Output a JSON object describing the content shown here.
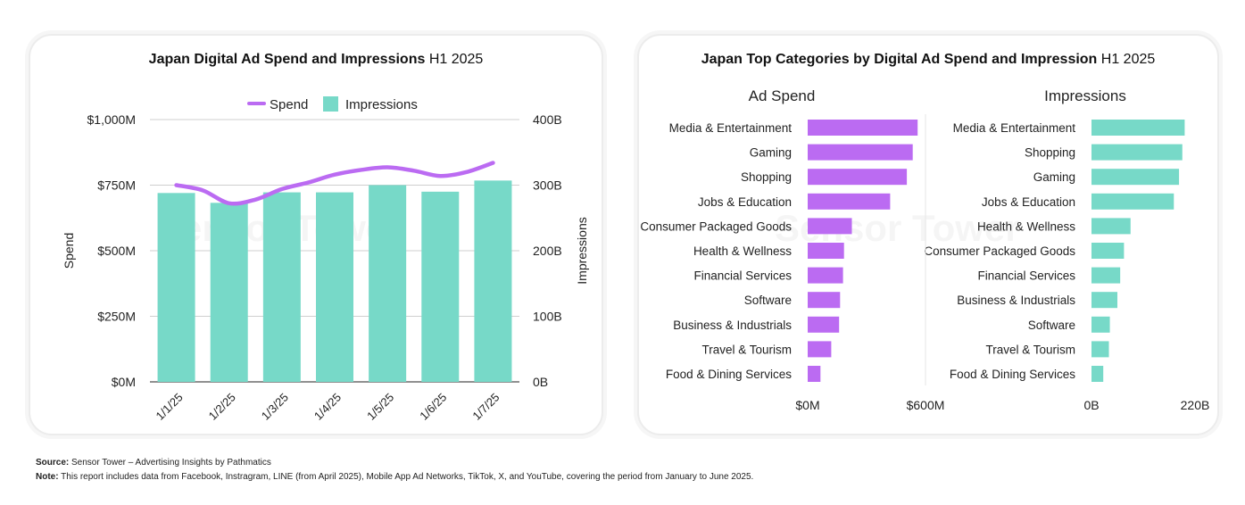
{
  "left_panel": {
    "title_bold": "Japan Digital Ad Spend and Impressions",
    "title_rest": "H1 2025"
  },
  "right_panel": {
    "title_bold": "Japan Top Categories by Digital Ad Spend  and Impression",
    "title_rest": "H1 2025"
  },
  "watermark": "Sensor Tower",
  "footer": {
    "source_label": "Source:",
    "source_text": "Sensor Tower – Advertising Insights by Pathmatics",
    "note_label": "Note:",
    "note_text": "This report includes data from Facebook, Instragram, LINE (from April 2025), Mobile App Ad Networks, TikTok, X, and YouTube, covering the period from January to June  2025."
  },
  "colors": {
    "spend": "#bb6bf2",
    "impressions": "#77d9c8",
    "grid": "#cfcfcf",
    "axis": "#222222"
  },
  "chart_data": [
    {
      "type": "bar+line",
      "title": "Japan Digital Ad Spend and Impressions H1 2025",
      "categories": [
        "1/1/25",
        "1/2/25",
        "1/3/25",
        "1/4/25",
        "1/5/25",
        "1/6/25",
        "1/7/25"
      ],
      "legend": [
        "Spend",
        "Impressions"
      ],
      "legend_position": "top-center",
      "series": [
        {
          "name": "Spend",
          "type": "line",
          "axis": "left",
          "x": [
            0,
            0.5,
            1,
            1.5,
            2,
            2.5,
            3,
            3.5,
            4,
            4.5,
            5,
            5.5,
            6
          ],
          "values": [
            750,
            730,
            681,
            695,
            735,
            760,
            790,
            808,
            818,
            805,
            785,
            800,
            835
          ]
        },
        {
          "name": "Impressions",
          "type": "bar",
          "axis": "right",
          "values": [
            288,
            273,
            289,
            289,
            300,
            290,
            307
          ]
        }
      ],
      "ylabel": "Spend",
      "ylabel_right": "Impressions",
      "ylim": [
        0,
        1000
      ],
      "ylim_right": [
        0,
        400
      ],
      "yticks": [
        "$0M",
        "$250M",
        "$500M",
        "$750M",
        "$1,000M"
      ],
      "yticks_right": [
        "0B",
        "100B",
        "200B",
        "300B",
        "400B"
      ],
      "grid": true
    },
    {
      "type": "bar",
      "orientation": "horizontal",
      "title": "Ad Spend",
      "categories": [
        "Media & Entertainment",
        "Gaming",
        "Shopping",
        "Jobs & Education",
        "Consumer Packaged Goods",
        "Health & Wellness",
        "Financial Services",
        "Software",
        "Business & Industrials",
        "Travel & Tourism",
        "Food & Dining Services"
      ],
      "values": [
        560,
        535,
        505,
        420,
        225,
        185,
        180,
        165,
        160,
        120,
        65
      ],
      "xlim": [
        0,
        600
      ],
      "xticks": [
        "$0M",
        "$600M"
      ]
    },
    {
      "type": "bar",
      "orientation": "horizontal",
      "title": "Impressions",
      "categories": [
        "Media & Entertainment",
        "Shopping",
        "Gaming",
        "Jobs & Education",
        "Health & Wellness",
        "Consumer Packaged Goods",
        "Financial Services",
        "Business & Industrials",
        "Software",
        "Travel & Tourism",
        "Food & Dining Services"
      ],
      "values": [
        198,
        193,
        186,
        175,
        83,
        69,
        61,
        55,
        39,
        37,
        25
      ],
      "xlim": [
        0,
        220
      ],
      "xticks": [
        "0B",
        "220B"
      ]
    }
  ]
}
